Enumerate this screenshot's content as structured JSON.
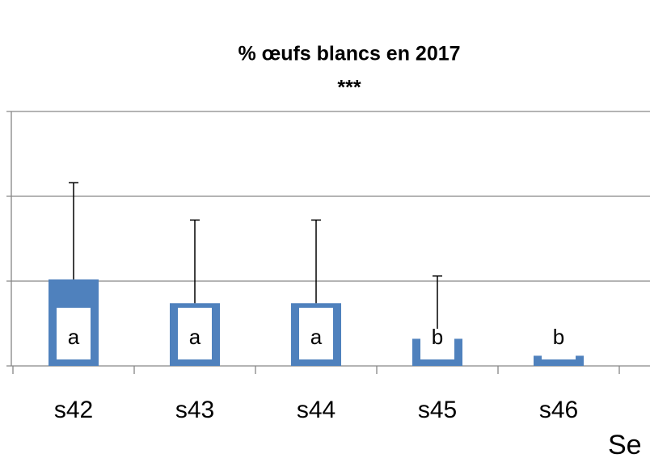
{
  "chart_data": {
    "type": "bar",
    "title": "% œufs blancs en 2017",
    "subtitle": "***",
    "x_label": "Se",
    "categories": [
      "s42",
      "s43",
      "s44",
      "s45",
      "s46"
    ],
    "values": [
      5.1,
      3.7,
      3.7,
      1.6,
      0.6
    ],
    "errors": [
      5.7,
      4.9,
      4.9,
      3.7,
      null
    ],
    "letters": [
      "a",
      "a",
      "a",
      "b",
      "b"
    ],
    "color": "#4f81bd",
    "ylim": [
      0,
      15
    ],
    "yticks": [
      0,
      5,
      10,
      15
    ],
    "grid": true
  }
}
